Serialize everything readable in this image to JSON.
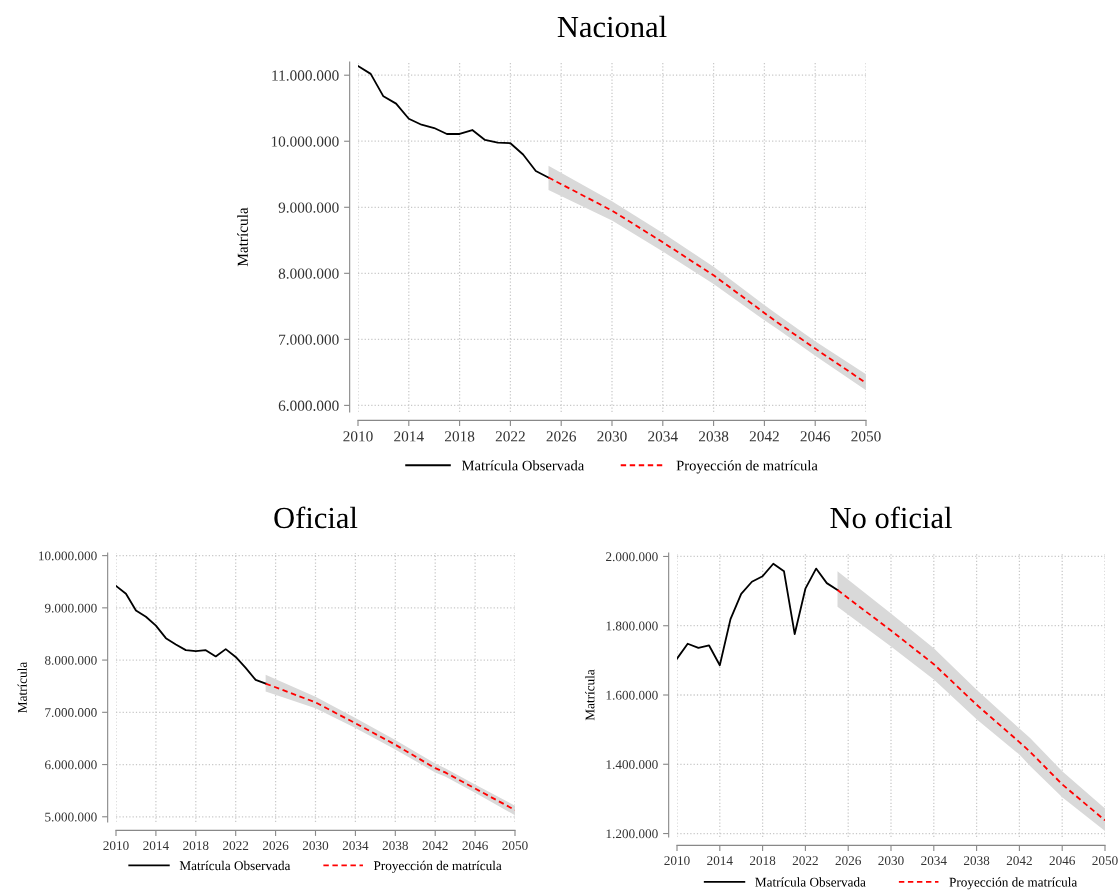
{
  "chart_data": [
    {
      "type": "line",
      "title": "Nacional",
      "ylabel": "Matrícula",
      "grid": true,
      "legend": "bottom",
      "xlim": [
        2010,
        2050
      ],
      "xticks": [
        2010,
        2014,
        2018,
        2022,
        2026,
        2030,
        2034,
        2038,
        2042,
        2046,
        2050
      ],
      "ylim": [
        5900000,
        11200000
      ],
      "yticks": [
        {
          "value": 6000000,
          "label": "6.000.000"
        },
        {
          "value": 7000000,
          "label": "7.000.000"
        },
        {
          "value": 8000000,
          "label": "8.000.000"
        },
        {
          "value": 9000000,
          "label": "9.000.000"
        },
        {
          "value": 10000000,
          "label": "10.000.000"
        },
        {
          "value": 11000000,
          "label": "11.000.000"
        }
      ],
      "series": [
        {
          "name": "Matrícula Observada",
          "color": "#000000",
          "line_style": "solid",
          "x": [
            2010,
            2011,
            2012,
            2013,
            2014,
            2015,
            2016,
            2017,
            2018,
            2019,
            2020,
            2021,
            2022,
            2023,
            2024,
            2025
          ],
          "values": [
            11140000,
            11020000,
            10680000,
            10570000,
            10340000,
            10250000,
            10200000,
            10110000,
            10110000,
            10170000,
            10020000,
            9980000,
            9970000,
            9800000,
            9550000,
            9450000
          ]
        },
        {
          "name": "Proyección de matrícula",
          "color": "#ff0000",
          "line_style": "dashed",
          "x": [
            2025,
            2030,
            2034,
            2038,
            2042,
            2043,
            2046,
            2050
          ],
          "values": [
            9450000,
            8950000,
            8470000,
            7970000,
            7400000,
            7260000,
            6860000,
            6340000
          ],
          "lower": [
            9260000,
            8800000,
            8330000,
            7840000,
            7290000,
            7160000,
            6750000,
            6230000
          ],
          "upper": [
            9630000,
            9090000,
            8610000,
            8100000,
            7520000,
            7380000,
            6970000,
            6470000
          ]
        }
      ]
    },
    {
      "type": "line",
      "title": "Oficial",
      "ylabel": "Matrícula",
      "grid": true,
      "legend": "bottom",
      "xlim": [
        2010,
        2050
      ],
      "xticks": [
        2010,
        2014,
        2018,
        2022,
        2026,
        2030,
        2034,
        2038,
        2042,
        2046,
        2050
      ],
      "ylim": [
        4900000,
        10050000
      ],
      "yticks": [
        {
          "value": 5000000,
          "label": "5.000.000"
        },
        {
          "value": 6000000,
          "label": "6.000.000"
        },
        {
          "value": 7000000,
          "label": "7.000.000"
        },
        {
          "value": 8000000,
          "label": "8.000.000"
        },
        {
          "value": 9000000,
          "label": "9.000.000"
        },
        {
          "value": 10000000,
          "label": "10.000.000"
        }
      ],
      "series": [
        {
          "name": "Matrícula Observada",
          "color": "#000000",
          "line_style": "solid",
          "x": [
            2010,
            2011,
            2012,
            2013,
            2014,
            2015,
            2016,
            2017,
            2018,
            2019,
            2020,
            2021,
            2022,
            2023,
            2024,
            2025
          ],
          "values": [
            9420000,
            9270000,
            8950000,
            8830000,
            8660000,
            8420000,
            8300000,
            8190000,
            8170000,
            8190000,
            8070000,
            8210000,
            8060000,
            7850000,
            7620000,
            7550000
          ]
        },
        {
          "name": "Proyección de matrícula",
          "color": "#ff0000",
          "line_style": "dashed",
          "x": [
            2025,
            2030,
            2034,
            2038,
            2042,
            2043,
            2046,
            2050
          ],
          "values": [
            7550000,
            7190000,
            6790000,
            6380000,
            5930000,
            5850000,
            5540000,
            5130000
          ],
          "lower": [
            7400000,
            7080000,
            6700000,
            6290000,
            5850000,
            5770000,
            5460000,
            5030000
          ],
          "upper": [
            7720000,
            7300000,
            6890000,
            6470000,
            6020000,
            5930000,
            5620000,
            5210000
          ]
        }
      ]
    },
    {
      "type": "line",
      "title": "No oficial",
      "ylabel": "Matrícula",
      "grid": true,
      "legend": "bottom",
      "xlim": [
        2010,
        2050
      ],
      "xticks": [
        2010,
        2014,
        2018,
        2022,
        2026,
        2030,
        2034,
        2038,
        2042,
        2046,
        2050
      ],
      "ylim": [
        1190000,
        2010000
      ],
      "yticks": [
        {
          "value": 1200000,
          "label": "1.200.000"
        },
        {
          "value": 1400000,
          "label": "1.400.000"
        },
        {
          "value": 1600000,
          "label": "1.600.000"
        },
        {
          "value": 1800000,
          "label": "1.800.000"
        },
        {
          "value": 2000000,
          "label": "2.000.000"
        }
      ],
      "series": [
        {
          "name": "Matrícula Observada",
          "color": "#000000",
          "line_style": "solid",
          "x": [
            2010,
            2011,
            2012,
            2013,
            2014,
            2015,
            2016,
            2017,
            2018,
            2019,
            2020,
            2021,
            2022,
            2023,
            2024,
            2025
          ],
          "values": [
            1705000,
            1748000,
            1736000,
            1743000,
            1686000,
            1819000,
            1892000,
            1927000,
            1943000,
            1979000,
            1957000,
            1776000,
            1907000,
            1965000,
            1923000,
            1903000
          ]
        },
        {
          "name": "Proyección de matrícula",
          "color": "#ff0000",
          "line_style": "dashed",
          "x": [
            2025,
            2030,
            2034,
            2038,
            2042,
            2043,
            2046,
            2050
          ],
          "values": [
            1903000,
            1786000,
            1689000,
            1572000,
            1464000,
            1436000,
            1342000,
            1238000
          ],
          "lower": [
            1855000,
            1740000,
            1645000,
            1530000,
            1428000,
            1395000,
            1305000,
            1207000
          ],
          "upper": [
            1957000,
            1835000,
            1735000,
            1615000,
            1503000,
            1476000,
            1380000,
            1272000
          ]
        }
      ]
    }
  ]
}
